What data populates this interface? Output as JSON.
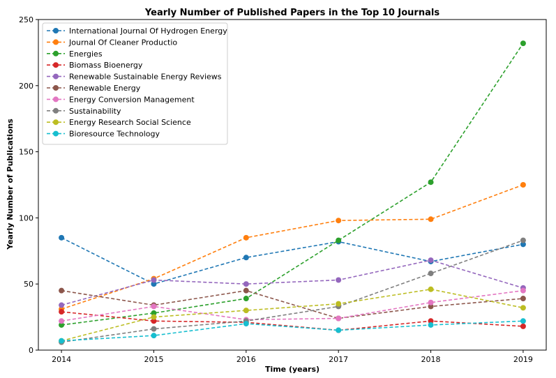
{
  "chart_data": {
    "type": "line",
    "title": "Yearly Number of Published Papers in the Top 10 Journals",
    "xlabel": "Time (years)",
    "ylabel": "Yearly Number of Publications",
    "x": [
      2014,
      2015,
      2016,
      2017,
      2018,
      2019
    ],
    "x_ticks": [
      "2014",
      "2015",
      "2016",
      "2017",
      "2018",
      "2019"
    ],
    "ylim": [
      0,
      250
    ],
    "y_ticks": [
      0,
      50,
      100,
      150,
      200,
      250
    ],
    "grid": false,
    "legend_position": "top-left",
    "line_style": "dashed",
    "marker": "circle",
    "series": [
      {
        "name": "International Journal Of Hydrogen Energy",
        "color": "#1f77b4",
        "values": [
          85,
          50,
          70,
          82,
          67,
          80
        ]
      },
      {
        "name": "Journal Of Cleaner Productio",
        "color": "#ff7f0e",
        "values": [
          31,
          54,
          85,
          98,
          99,
          125
        ]
      },
      {
        "name": "Energies",
        "color": "#2ca02c",
        "values": [
          19,
          28,
          39,
          83,
          127,
          232
        ]
      },
      {
        "name": "Biomass Bioenergy",
        "color": "#d62728",
        "values": [
          29,
          22,
          21,
          15,
          22,
          18
        ]
      },
      {
        "name": "Renewable Sustainable Energy Reviews",
        "color": "#9467bd",
        "values": [
          34,
          53,
          50,
          53,
          68,
          47
        ]
      },
      {
        "name": "Renewable Energy",
        "color": "#8c564b",
        "values": [
          45,
          34,
          45,
          24,
          33,
          39
        ]
      },
      {
        "name": "Energy Conversion  Management",
        "color": "#e377c2",
        "values": [
          22,
          33,
          23,
          24,
          36,
          45
        ]
      },
      {
        "name": "Sustainability",
        "color": "#7f7f7f",
        "values": [
          6,
          16,
          22,
          33,
          58,
          83
        ]
      },
      {
        "name": "Energy Research Social Science",
        "color": "#bcbd22",
        "values": [
          7,
          25,
          30,
          35,
          46,
          32
        ]
      },
      {
        "name": "Bioresource Technology",
        "color": "#17becf",
        "values": [
          7,
          11,
          20,
          15,
          19,
          22
        ]
      }
    ]
  }
}
